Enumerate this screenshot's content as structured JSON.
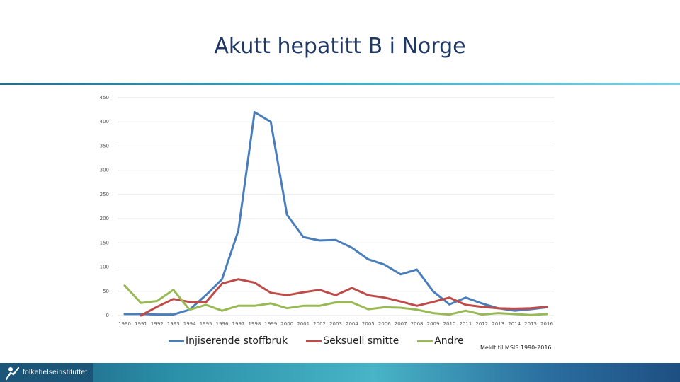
{
  "slide": {
    "title": "Akutt hepatitt B i Norge",
    "note": "Meldt til MSIS 1990-2016",
    "logo_text": "folkehelseinstituttet"
  },
  "chart_data": {
    "type": "line",
    "title": "",
    "xlabel": "",
    "ylabel": "",
    "ylim": [
      0,
      450
    ],
    "yticks": [
      0,
      50,
      100,
      150,
      200,
      250,
      300,
      350,
      400,
      450
    ],
    "grid": true,
    "legend_position": "bottom",
    "x": [
      "1990",
      "1991",
      "1992",
      "1993",
      "1994",
      "1995",
      "1996",
      "1997",
      "1998",
      "1999",
      "2000",
      "2001",
      "2002",
      "2003",
      "2004",
      "2005",
      "2006",
      "2007",
      "2008",
      "2009",
      "2010",
      "2011",
      "2012",
      "2013",
      "2014",
      "2015",
      "2016"
    ],
    "series": [
      {
        "name": "Injiserende stoffbruk",
        "color": "#4a7ebb",
        "values": [
          3,
          3,
          2,
          2,
          12,
          42,
          75,
          175,
          420,
          400,
          208,
          162,
          155,
          156,
          140,
          116,
          105,
          85,
          95,
          50,
          23,
          37,
          25,
          15,
          10,
          13,
          17
        ]
      },
      {
        "name": "Seksuell smitte",
        "color": "#be4b48",
        "values": [
          null,
          0,
          18,
          34,
          28,
          27,
          66,
          75,
          68,
          47,
          42,
          48,
          53,
          42,
          57,
          42,
          37,
          29,
          20,
          28,
          37,
          22,
          18,
          15,
          14,
          15,
          18
        ]
      },
      {
        "name": "Andre",
        "color": "#98b954",
        "values": [
          62,
          26,
          30,
          53,
          12,
          22,
          10,
          20,
          20,
          25,
          15,
          20,
          20,
          27,
          27,
          13,
          17,
          16,
          12,
          5,
          2,
          10,
          2,
          5,
          3,
          1,
          3
        ]
      }
    ]
  }
}
